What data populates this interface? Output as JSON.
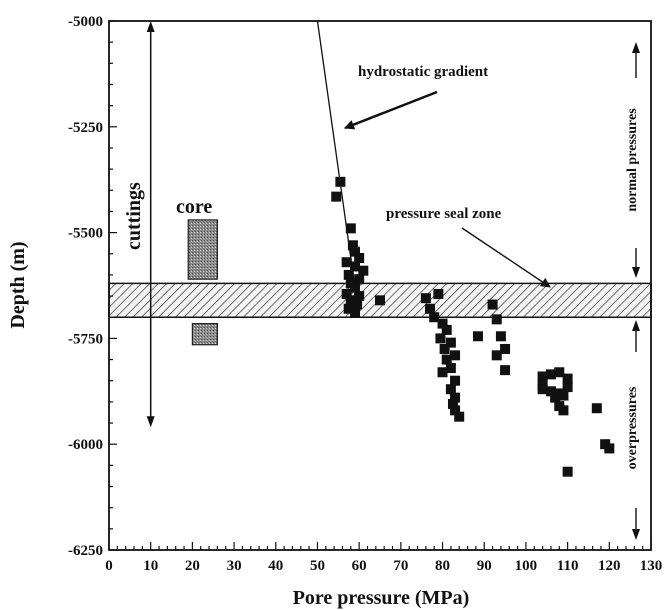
{
  "chart_data": {
    "type": "scatter",
    "xlabel": "Pore pressure (MPa)",
    "ylabel": "Depth (m)",
    "xlim": [
      0,
      130
    ],
    "ylim": [
      -6250,
      -5000
    ],
    "x_ticks": [
      0,
      10,
      20,
      30,
      40,
      50,
      60,
      70,
      80,
      90,
      100,
      110,
      120,
      130
    ],
    "y_ticks": [
      -6250,
      -6000,
      -5750,
      -5500,
      -5250,
      -5000
    ],
    "x_tick_labels": [
      "0",
      "10",
      "20",
      "30",
      "40",
      "50",
      "60",
      "70",
      "80",
      "90",
      "100",
      "110",
      "120",
      "130"
    ],
    "y_tick_labels": [
      "-6250",
      "-6000",
      "-5750",
      "-5500",
      "-5250",
      "-5000"
    ],
    "grid": false,
    "series": [
      {
        "points": [
          [
            55.5,
            -5380
          ],
          [
            54.5,
            -5415
          ],
          [
            58,
            -5490
          ],
          [
            58.5,
            -5530
          ],
          [
            59,
            -5545
          ],
          [
            60,
            -5560
          ],
          [
            57,
            -5570
          ],
          [
            59,
            -5580
          ],
          [
            61,
            -5590
          ],
          [
            57.5,
            -5600
          ],
          [
            60,
            -5610
          ],
          [
            58,
            -5620
          ],
          [
            59,
            -5630
          ],
          [
            57,
            -5645
          ],
          [
            60,
            -5650
          ],
          [
            58,
            -5660
          ],
          [
            59.5,
            -5670
          ],
          [
            57.5,
            -5680
          ],
          [
            59,
            -5690
          ],
          [
            65,
            -5660
          ],
          [
            76,
            -5655
          ],
          [
            77,
            -5680
          ],
          [
            79,
            -5645
          ],
          [
            78,
            -5700
          ],
          [
            80,
            -5715
          ],
          [
            81,
            -5730
          ],
          [
            79.5,
            -5750
          ],
          [
            82,
            -5760
          ],
          [
            80.5,
            -5775
          ],
          [
            83,
            -5790
          ],
          [
            81,
            -5800
          ],
          [
            82,
            -5820
          ],
          [
            80,
            -5830
          ],
          [
            83,
            -5850
          ],
          [
            82,
            -5870
          ],
          [
            83,
            -5890
          ],
          [
            82.5,
            -5905
          ],
          [
            83,
            -5920
          ],
          [
            84,
            -5935
          ],
          [
            92,
            -5670
          ],
          [
            93,
            -5705
          ],
          [
            88.5,
            -5745
          ],
          [
            94,
            -5745
          ],
          [
            95,
            -5775
          ],
          [
            93,
            -5790
          ],
          [
            95,
            -5825
          ],
          [
            104,
            -5840
          ],
          [
            106,
            -5835
          ],
          [
            108,
            -5830
          ],
          [
            110,
            -5845
          ],
          [
            104,
            -5860
          ],
          [
            110,
            -5865
          ],
          [
            106,
            -5875
          ],
          [
            108,
            -5880
          ],
          [
            104,
            -5870
          ],
          [
            107,
            -5890
          ],
          [
            109,
            -5885
          ],
          [
            108,
            -5910
          ],
          [
            117,
            -5915
          ],
          [
            109,
            -5920
          ],
          [
            119,
            -6000
          ],
          [
            120,
            -6010
          ],
          [
            110,
            -6065
          ]
        ]
      }
    ],
    "hydrostatic_line": {
      "x": [
        50,
        60
      ],
      "y": [
        -5000,
        -5700
      ]
    },
    "pressure_seal_zone": {
      "y_top": -5620,
      "y_bottom": -5700
    },
    "core_intervals": [
      {
        "x_range": [
          19,
          26
        ],
        "y_top": -5470,
        "y_bottom": -5610
      },
      {
        "x_range": [
          20,
          26
        ],
        "y_top": -5715,
        "y_bottom": -5765
      }
    ],
    "cuttings_range": {
      "x": 10,
      "y_top": -5000,
      "y_bottom": -5960
    },
    "annotations": {
      "hydrostatic": "hydrostatic gradient",
      "seal": "pressure seal zone",
      "core": "core",
      "cuttings": "cuttings",
      "normal": "normal pressures",
      "over": "overpressures"
    }
  }
}
